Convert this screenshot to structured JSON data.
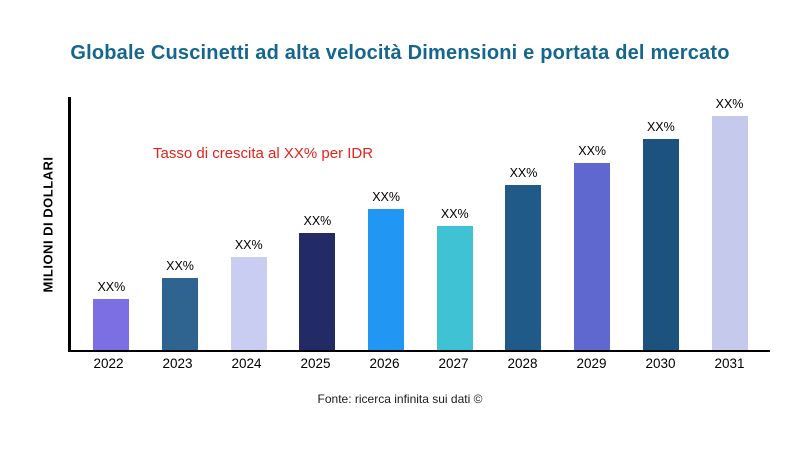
{
  "chart_data": {
    "type": "bar",
    "title": "Globale Cuscinetti ad alta velocità Dimensioni e portata del mercato",
    "title_color": "#15668E",
    "ylabel": "MILIONI DI DOLLARI",
    "xlabel": "",
    "annotation": "Tasso di crescita al XX% per IDR",
    "annotation_color": "#E8211D",
    "source": "Fonte: ricerca infinita sui dati ©",
    "categories": [
      "2022",
      "2023",
      "2024",
      "2025",
      "2026",
      "2027",
      "2028",
      "2029",
      "2030",
      "2031"
    ],
    "values": [
      50,
      71,
      92,
      116,
      139,
      123,
      163,
      185,
      209,
      231
    ],
    "bar_labels": [
      "XX%",
      "XX%",
      "XX%",
      "XX%",
      "XX%",
      "XX%",
      "XX%",
      "XX%",
      "XX%",
      "XX%"
    ],
    "colors": [
      "#7C6FE4",
      "#2F6390",
      "#C9CDF2",
      "#232B66",
      "#2196F3",
      "#3FC3D4",
      "#1F5A89",
      "#5F68CE",
      "#1C537E",
      "#C5CAED"
    ],
    "ylim": [
      0,
      250
    ],
    "grid": false,
    "legend": false
  }
}
